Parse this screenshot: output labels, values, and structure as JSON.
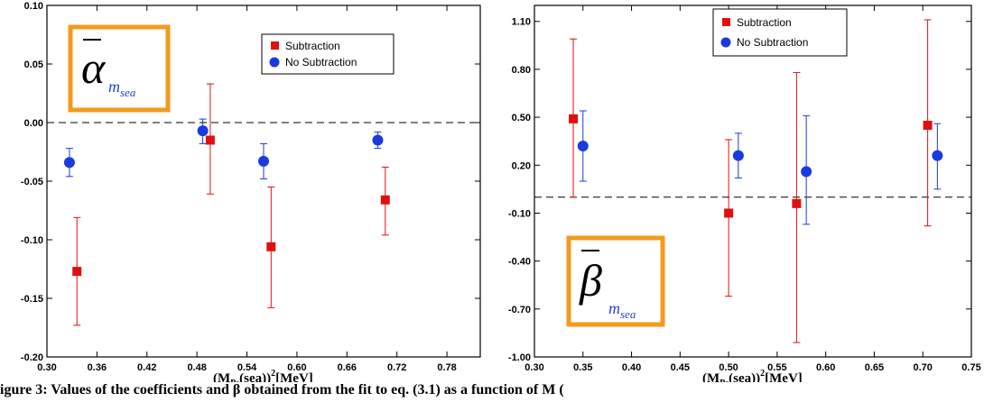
{
  "caption": "igure 3:  Values of the coefficients  and  β  obtained from the fit to eq. (3.1) as a function of M  (",
  "colors": {
    "subtraction": "#e01010",
    "no_subtraction": "#1a3ae0",
    "box": "#f39a1e"
  },
  "chart_data": [
    {
      "type": "scatter",
      "symbol": "α",
      "symbol_sub": "m",
      "symbol_subsub": "sea",
      "xlabel": "(M",
      "xlabel_sub": "Ps",
      "xlabel_mid": "(sea))",
      "xlabel_sup": "2",
      "xlabel_unit": "[MeV]",
      "xlim": [
        0.3,
        0.82
      ],
      "ylim": [
        -0.2,
        0.1
      ],
      "xticks": [
        "0.30",
        "0.36",
        "0.42",
        "0.48",
        "0.54",
        "0.60",
        "0.66",
        "0.72",
        "0.78"
      ],
      "xtick_values": [
        0.3,
        0.36,
        0.42,
        0.48,
        0.54,
        0.6,
        0.66,
        0.72,
        0.78
      ],
      "yticks": [
        "-0.20",
        "-0.15",
        "-0.10",
        "-0.05",
        "0.00",
        "0.05",
        "0.10"
      ],
      "ytick_values": [
        -0.2,
        -0.15,
        -0.1,
        -0.05,
        0.0,
        0.05,
        0.1
      ],
      "reference_line": 0.0,
      "legend": [
        "Subtraction",
        "No Subtraction"
      ],
      "series": [
        {
          "name": "Subtraction",
          "marker": "square",
          "x": [
            0.336,
            0.496,
            0.569,
            0.706
          ],
          "y": [
            -0.127,
            -0.015,
            -0.106,
            -0.066
          ],
          "lo": [
            -0.173,
            -0.061,
            -0.158,
            -0.096
          ],
          "hi": [
            -0.081,
            0.033,
            -0.055,
            -0.038
          ]
        },
        {
          "name": "No Subtraction",
          "marker": "circle",
          "x": [
            0.327,
            0.487,
            0.56,
            0.697
          ],
          "y": [
            -0.034,
            -0.007,
            -0.033,
            -0.015
          ],
          "lo": [
            -0.046,
            -0.018,
            -0.048,
            -0.022
          ],
          "hi": [
            -0.022,
            0.003,
            -0.018,
            -0.008
          ]
        }
      ]
    },
    {
      "type": "scatter",
      "symbol": "β",
      "symbol_sub": "m",
      "symbol_subsub": "sea",
      "xlabel": "(M",
      "xlabel_sub": "Ps",
      "xlabel_mid": "(sea))",
      "xlabel_sup": "2",
      "xlabel_unit": "[MeV]",
      "xlim": [
        0.3,
        0.75
      ],
      "ylim": [
        -1.0,
        1.2
      ],
      "xticks": [
        "0.30",
        "0.35",
        "0.40",
        "0.45",
        "0.50",
        "0.55",
        "0.60",
        "0.65",
        "0.70",
        "0.75"
      ],
      "xtick_values": [
        0.3,
        0.35,
        0.4,
        0.45,
        0.5,
        0.55,
        0.6,
        0.65,
        0.7,
        0.75
      ],
      "yticks": [
        "-1.00",
        "-0.70",
        "-0.40",
        "-0.10",
        "0.20",
        "0.50",
        "0.80",
        "1.10"
      ],
      "ytick_values": [
        -1.0,
        -0.7,
        -0.4,
        -0.1,
        0.2,
        0.5,
        0.8,
        1.1
      ],
      "reference_line": 0.0,
      "legend": [
        "Subtraction",
        "No Subtraction"
      ],
      "series": [
        {
          "name": "Subtraction",
          "marker": "square",
          "x": [
            0.34,
            0.5,
            0.57,
            0.705
          ],
          "y": [
            0.49,
            -0.1,
            -0.04,
            0.45
          ],
          "lo": [
            0.0,
            -0.62,
            -0.91,
            -0.18
          ],
          "hi": [
            0.99,
            0.36,
            0.78,
            1.11
          ]
        },
        {
          "name": "No Subtraction",
          "marker": "circle",
          "x": [
            0.35,
            0.51,
            0.58,
            0.715
          ],
          "y": [
            0.32,
            0.26,
            0.16,
            0.26
          ],
          "lo": [
            0.1,
            0.12,
            -0.17,
            0.05
          ],
          "hi": [
            0.54,
            0.4,
            0.51,
            0.46
          ]
        }
      ]
    }
  ]
}
